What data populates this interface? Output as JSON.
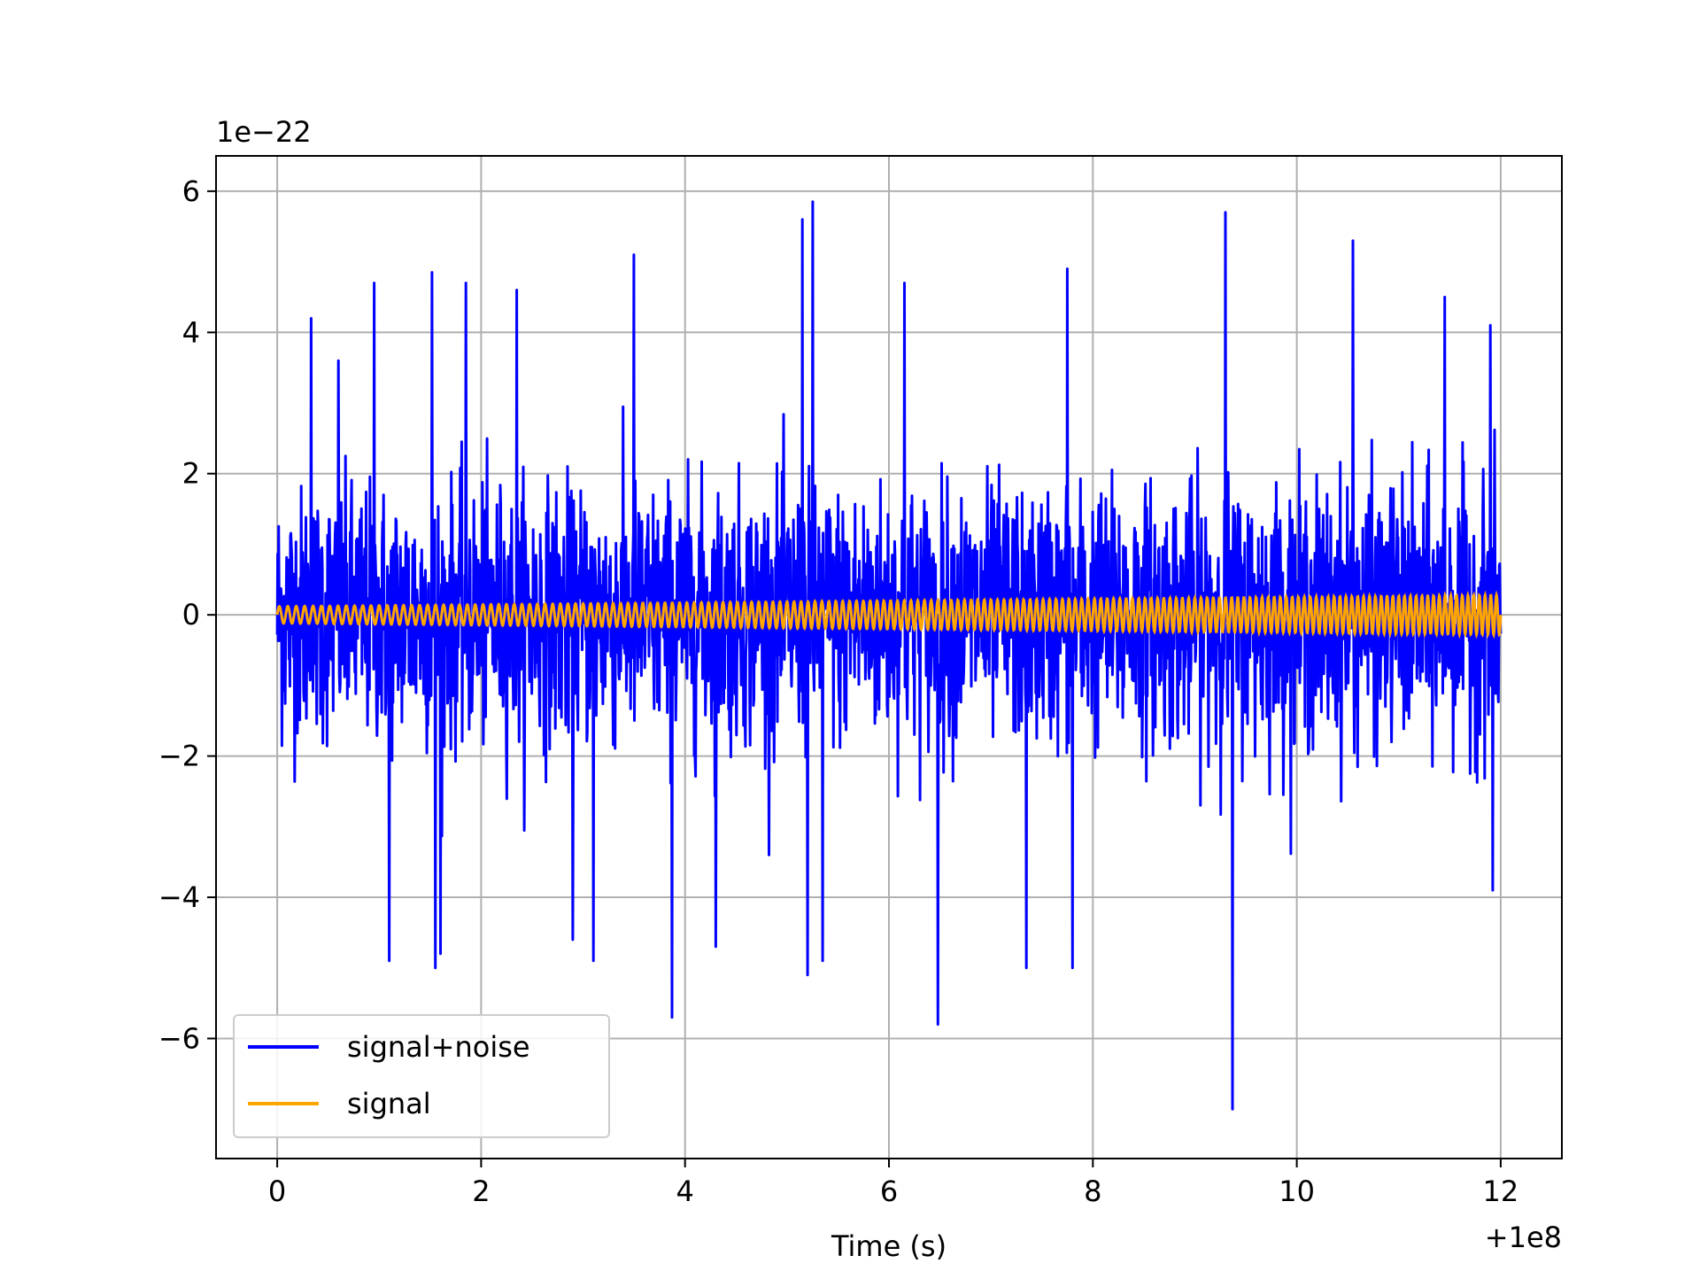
{
  "chart_data": {
    "type": "line",
    "title": "",
    "xlabel": "Time (s)",
    "ylabel": "",
    "x_offset_label": "+1e8",
    "y_scale_label": "1e−22",
    "xlim": [
      -0.6,
      12.6
    ],
    "ylim": [
      -7.7,
      6.5
    ],
    "x_ticks": [
      0,
      2,
      4,
      6,
      8,
      10,
      12
    ],
    "x_tick_labels": [
      "0",
      "2",
      "4",
      "6",
      "8",
      "10",
      "12"
    ],
    "y_ticks": [
      -6,
      -4,
      -2,
      0,
      2,
      4,
      6
    ],
    "y_tick_labels": [
      "−6",
      "−4",
      "−2",
      "0",
      "2",
      "4",
      "6"
    ],
    "grid": true,
    "legend_position": "lower-left",
    "x_range": [
      0,
      12
    ],
    "series": [
      {
        "name": "signal+noise",
        "color": "#0000ff",
        "description_values": "dense noise, amplitude mostly within ±2 (x1e-22), peaks to about +5.9 and down to about -7.0",
        "peaks": [
          {
            "x": 0.33,
            "y": 4.2
          },
          {
            "x": 0.6,
            "y": 3.6
          },
          {
            "x": 0.95,
            "y": 4.7
          },
          {
            "x": 1.1,
            "y": -4.9
          },
          {
            "x": 1.52,
            "y": 4.85
          },
          {
            "x": 1.55,
            "y": -5.0
          },
          {
            "x": 1.6,
            "y": -4.8
          },
          {
            "x": 1.85,
            "y": 4.7
          },
          {
            "x": 2.35,
            "y": 4.6
          },
          {
            "x": 2.9,
            "y": -4.6
          },
          {
            "x": 3.1,
            "y": -4.9
          },
          {
            "x": 3.5,
            "y": 5.1
          },
          {
            "x": 3.87,
            "y": -5.7
          },
          {
            "x": 4.3,
            "y": -4.7
          },
          {
            "x": 5.15,
            "y": 5.6
          },
          {
            "x": 5.2,
            "y": -5.1
          },
          {
            "x": 5.25,
            "y": 5.85
          },
          {
            "x": 5.35,
            "y": -4.9
          },
          {
            "x": 6.15,
            "y": 4.7
          },
          {
            "x": 6.48,
            "y": -5.8
          },
          {
            "x": 7.35,
            "y": -5.0
          },
          {
            "x": 7.75,
            "y": 4.9
          },
          {
            "x": 7.8,
            "y": -5.0
          },
          {
            "x": 9.3,
            "y": 5.7
          },
          {
            "x": 9.37,
            "y": -7.0
          },
          {
            "x": 10.55,
            "y": 5.3
          },
          {
            "x": 11.45,
            "y": 4.5
          },
          {
            "x": 11.9,
            "y": 4.1
          },
          {
            "x": 11.92,
            "y": -3.9
          }
        ],
        "noise_sigma": 0.9
      },
      {
        "name": "signal",
        "color": "#ffa500",
        "amplitude_start": 0.12,
        "amplitude_end": 0.28,
        "cycles": 180
      }
    ]
  }
}
